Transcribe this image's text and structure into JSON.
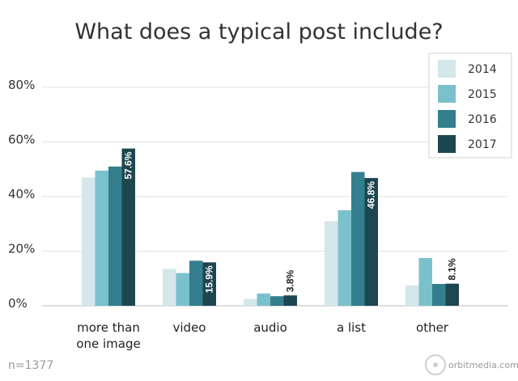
{
  "chart_data": {
    "type": "bar",
    "title": "What does a typical post include?",
    "categories": [
      "more than\none image",
      "video",
      "audio",
      "a list",
      "other"
    ],
    "series": [
      {
        "name": "2014",
        "color": "#d4e7eb",
        "values": [
          47,
          13.5,
          2.5,
          31,
          7.5
        ]
      },
      {
        "name": "2015",
        "color": "#7bc1cc",
        "values": [
          49.5,
          12,
          4.5,
          35,
          17.5
        ]
      },
      {
        "name": "2016",
        "color": "#337f8d",
        "values": [
          51,
          16.5,
          3.5,
          49,
          8
        ]
      },
      {
        "name": "2017",
        "color": "#1e4650",
        "values": [
          57.6,
          15.9,
          3.8,
          46.8,
          8.1
        ],
        "labels": [
          "57.6%",
          "15.9%",
          "3.8%",
          "46.8%",
          "8.1%"
        ]
      }
    ],
    "yticks": [
      "0%",
      "20%",
      "40%",
      "60%",
      "80%"
    ],
    "ytick_values": [
      0,
      20,
      40,
      60,
      80
    ],
    "ylim": [
      0,
      80
    ],
    "grid": true,
    "legend_position": "top-right",
    "note": "n=1377",
    "source": "orbitmedia.com"
  }
}
